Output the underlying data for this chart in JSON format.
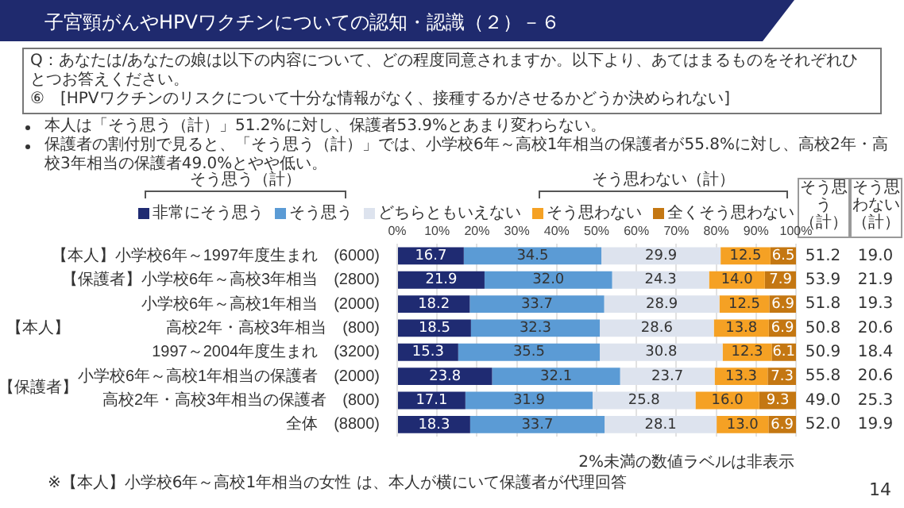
{
  "chart_data": {
    "type": "bar",
    "orientation": "horizontal",
    "stacked": true,
    "title": "子宮頸がんやHPVワクチンについての認知・認識（２）－６",
    "subtitle": "Q：あなたは/あなたの娘は以下の内容について、どの程度同意されますか。以下より、あてはまるものをそれぞれひとつお答えください。\n⑥　[HPVワクチンのリスクについて十分な情報がなく、接種するか/させるかどうか決められない]",
    "categories": [
      "【本人】小学校6年～1997年度生まれ　(6000)",
      "【保護者】小学校6年～高校3年相当　(2800)",
      "小学校6年～高校1年相当　(2000)",
      "高校2年・高校3年相当　(800)",
      "1997～2004年度生まれ　(3200)",
      "小学校6年～高校1年相当の保護者　(2000)",
      "高校2年・高校3年相当の保護者　(800)",
      "全体　(8800)"
    ],
    "series": [
      {
        "name": "非常にそう思う",
        "color": "#1f2b72",
        "values": [
          16.7,
          21.9,
          18.2,
          18.5,
          15.3,
          23.8,
          17.1,
          18.3
        ],
        "value_labels": [
          "16.7",
          "21.9",
          "18.2",
          "18.5",
          "15.3",
          "23.8",
          "17.1",
          "18.3"
        ]
      },
      {
        "name": "そう思う",
        "color": "#5b9bd5",
        "values": [
          34.5,
          32.0,
          33.7,
          32.3,
          35.5,
          32.1,
          31.9,
          33.7
        ],
        "value_labels": [
          "34.5",
          "32.0",
          "33.7",
          "32.3",
          "35.5",
          "32.1",
          "31.9",
          "33.7"
        ]
      },
      {
        "name": "どちらともいえない",
        "color": "#dde3ee",
        "values": [
          29.9,
          24.3,
          28.9,
          28.6,
          30.8,
          23.7,
          25.8,
          28.1
        ],
        "value_labels": [
          "29.9",
          "24.3",
          "28.9",
          "28.6",
          "30.8",
          "23.7",
          "25.8",
          "28.1"
        ]
      },
      {
        "name": "そう思わない",
        "color": "#f5a124",
        "values": [
          12.5,
          14.0,
          12.5,
          13.8,
          12.3,
          13.3,
          16.0,
          13.0
        ],
        "value_labels": [
          "12.5",
          "14.0",
          "12.5",
          "13.8",
          "12.3",
          "13.3",
          "16.0",
          "13.0"
        ]
      },
      {
        "name": "全くそう思わない",
        "color": "#c47712",
        "values": [
          6.5,
          7.9,
          6.9,
          6.9,
          6.1,
          7.3,
          9.3,
          6.9
        ],
        "value_labels": [
          "6.5",
          "7.9",
          "6.9",
          "6.9",
          "6.1",
          "7.3",
          "9.3",
          "6.9"
        ]
      }
    ],
    "xlim": [
      0,
      100
    ],
    "xticks": [
      {
        "value": 0,
        "label": "0%"
      },
      {
        "value": 10,
        "label": "10%"
      },
      {
        "value": 20,
        "label": "20%"
      },
      {
        "value": 30,
        "label": "30%"
      },
      {
        "value": 40,
        "label": "40%"
      },
      {
        "value": 50,
        "label": "50%"
      },
      {
        "value": 60,
        "label": "60%"
      },
      {
        "value": 70,
        "label": "70%"
      },
      {
        "value": 80,
        "label": "80%"
      },
      {
        "value": 90,
        "label": "90%"
      },
      {
        "value": 100,
        "label": "100%"
      }
    ],
    "grid": "x",
    "legend": "top",
    "annotations": [
      "本人は「そう思う（計）」51.2%に対し、保護者53.9%とあまり変わらない。",
      "保護者の割付別で見ると、「そう思う（計）」では、小学校6年～高校1年相当の保護者が55.8%に対し、高校2年・高校3年相当の保護者49.0%とやや低い。",
      "そう思う（計）",
      "そう思わない（計）",
      "【本人】",
      "【保護者】",
      "そう思う（計）",
      "そう思わない（計）",
      "2%未満の数値ラベルは非表示",
      "※【本人】小学校6年～高校1年相当の女性 は、本人が横にいて保護者が代理回答",
      "14",
      "51.2",
      "19.0",
      "53.9",
      "21.9",
      "51.8",
      "19.3",
      "50.8",
      "20.6",
      "50.9",
      "18.4",
      "55.8",
      "20.6",
      "49.0",
      "25.3",
      "52.0",
      "19.9"
    ]
  }
}
